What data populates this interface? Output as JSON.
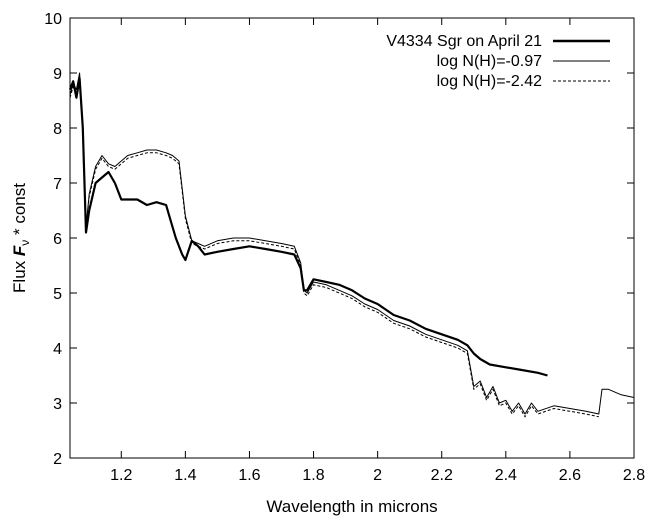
{
  "chart_data": {
    "type": "line",
    "xlabel": "Wavelength in microns",
    "ylabel": {
      "prefix": "Flux ",
      "symbol": "F",
      "subscript": "ν",
      "suffix": " * const"
    },
    "xlim": [
      1.04,
      2.8
    ],
    "ylim": [
      2,
      10
    ],
    "xticks": [
      1.2,
      1.4,
      1.6,
      1.8,
      2,
      2.2,
      2.4,
      2.6,
      2.8
    ],
    "xtick_labels": [
      "1.2",
      "1.4",
      "1.6",
      "1.8",
      "2",
      "2.2",
      "2.4",
      "2.6",
      "2.8"
    ],
    "yticks": [
      2,
      3,
      4,
      5,
      6,
      7,
      8,
      9,
      10
    ],
    "ytick_labels": [
      "2",
      "3",
      "4",
      "5",
      "6",
      "7",
      "8",
      "9",
      "10"
    ],
    "grid": false,
    "legend_position": "top-right",
    "series": [
      {
        "name": "V4334 Sgr on April 21",
        "style": "thick-solid",
        "x": [
          1.04,
          1.05,
          1.06,
          1.07,
          1.08,
          1.09,
          1.1,
          1.12,
          1.14,
          1.16,
          1.18,
          1.2,
          1.22,
          1.25,
          1.28,
          1.31,
          1.34,
          1.35,
          1.37,
          1.39,
          1.4,
          1.42,
          1.44,
          1.46,
          1.5,
          1.55,
          1.6,
          1.65,
          1.7,
          1.74,
          1.76,
          1.77,
          1.78,
          1.8,
          1.84,
          1.88,
          1.92,
          1.96,
          2.0,
          2.05,
          2.1,
          2.15,
          2.2,
          2.25,
          2.28,
          2.3,
          2.32,
          2.35,
          2.4,
          2.45,
          2.5,
          2.53
        ],
        "y": [
          8.7,
          8.85,
          8.55,
          8.9,
          8.0,
          6.1,
          6.5,
          7.0,
          7.1,
          7.2,
          7.0,
          6.7,
          6.7,
          6.7,
          6.6,
          6.65,
          6.6,
          6.4,
          6.0,
          5.7,
          5.6,
          5.95,
          5.85,
          5.7,
          5.75,
          5.8,
          5.85,
          5.8,
          5.75,
          5.7,
          5.45,
          5.05,
          5.05,
          5.25,
          5.2,
          5.15,
          5.05,
          4.9,
          4.8,
          4.6,
          4.5,
          4.35,
          4.25,
          4.15,
          4.05,
          3.9,
          3.8,
          3.7,
          3.65,
          3.6,
          3.55,
          3.5
        ]
      },
      {
        "name": "log N(H)=-0.97",
        "style": "thin-solid",
        "x": [
          1.04,
          1.05,
          1.06,
          1.07,
          1.08,
          1.09,
          1.1,
          1.12,
          1.14,
          1.16,
          1.18,
          1.2,
          1.22,
          1.25,
          1.28,
          1.31,
          1.34,
          1.36,
          1.38,
          1.4,
          1.42,
          1.44,
          1.46,
          1.5,
          1.55,
          1.6,
          1.65,
          1.7,
          1.74,
          1.76,
          1.77,
          1.78,
          1.8,
          1.84,
          1.88,
          1.92,
          1.96,
          2.0,
          2.05,
          2.1,
          2.15,
          2.2,
          2.25,
          2.28,
          2.3,
          2.32,
          2.34,
          2.36,
          2.38,
          2.4,
          2.42,
          2.44,
          2.46,
          2.48,
          2.5,
          2.55,
          2.6,
          2.65,
          2.69,
          2.7,
          2.72,
          2.76,
          2.8
        ],
        "y": [
          8.6,
          8.8,
          8.7,
          9.0,
          8.0,
          6.2,
          6.8,
          7.3,
          7.5,
          7.35,
          7.3,
          7.4,
          7.5,
          7.55,
          7.6,
          7.6,
          7.55,
          7.5,
          7.4,
          6.4,
          5.95,
          5.9,
          5.85,
          5.95,
          6.0,
          6.0,
          5.95,
          5.9,
          5.85,
          5.55,
          5.05,
          5.0,
          5.2,
          5.15,
          5.05,
          4.95,
          4.8,
          4.7,
          4.5,
          4.4,
          4.25,
          4.15,
          4.05,
          3.95,
          3.3,
          3.4,
          3.1,
          3.3,
          3.0,
          3.05,
          2.85,
          3.0,
          2.8,
          3.0,
          2.85,
          2.95,
          2.9,
          2.85,
          2.8,
          3.25,
          3.25,
          3.15,
          3.1
        ]
      },
      {
        "name": "log N(H)=-2.42",
        "style": "thin-dashed",
        "x": [
          1.04,
          1.05,
          1.06,
          1.07,
          1.08,
          1.09,
          1.1,
          1.12,
          1.14,
          1.16,
          1.18,
          1.2,
          1.22,
          1.25,
          1.28,
          1.31,
          1.34,
          1.36,
          1.38,
          1.4,
          1.42,
          1.44,
          1.46,
          1.5,
          1.55,
          1.6,
          1.65,
          1.7,
          1.74,
          1.76,
          1.77,
          1.78,
          1.8,
          1.84,
          1.88,
          1.92,
          1.96,
          2.0,
          2.05,
          2.1,
          2.15,
          2.2,
          2.25,
          2.28,
          2.3,
          2.32,
          2.34,
          2.36,
          2.38,
          2.4,
          2.42,
          2.44,
          2.46,
          2.48,
          2.5,
          2.55,
          2.6,
          2.65,
          2.69
        ],
        "y": [
          8.55,
          8.75,
          8.6,
          8.95,
          7.9,
          6.15,
          6.75,
          7.25,
          7.45,
          7.3,
          7.25,
          7.35,
          7.45,
          7.5,
          7.55,
          7.55,
          7.5,
          7.45,
          7.35,
          6.35,
          5.9,
          5.85,
          5.8,
          5.9,
          5.95,
          5.95,
          5.9,
          5.85,
          5.8,
          5.5,
          5.0,
          4.95,
          5.15,
          5.1,
          5.0,
          4.9,
          4.75,
          4.65,
          4.45,
          4.35,
          4.2,
          4.1,
          4.0,
          3.9,
          3.25,
          3.35,
          3.05,
          3.25,
          2.95,
          3.0,
          2.8,
          2.95,
          2.75,
          2.95,
          2.8,
          2.9,
          2.85,
          2.8,
          2.75
        ]
      }
    ]
  }
}
